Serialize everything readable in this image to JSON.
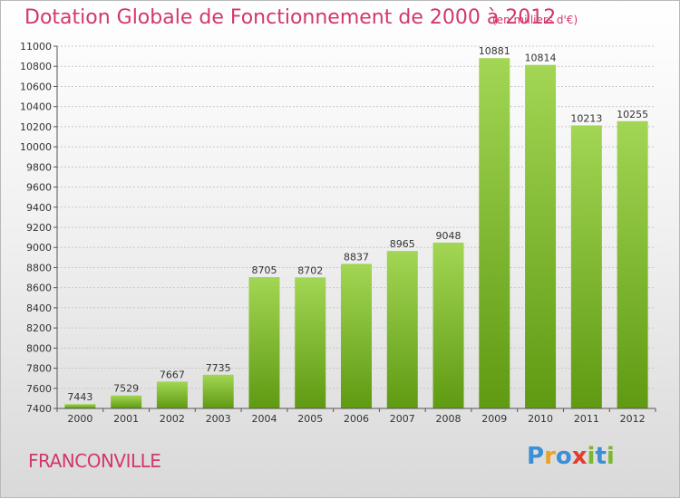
{
  "header": {
    "title": "Dotation Globale de Fonctionnement de 2000 à 2012",
    "unit": "(en milliers d'€)"
  },
  "footer": {
    "place": "FRANCONVILLE",
    "logo": "Proxiti",
    "logo_letters": [
      "P",
      "r",
      "o",
      "x",
      "i",
      "t",
      "i"
    ],
    "logo_colors": [
      "#3a8fd6",
      "#e8a323",
      "#3a8fd6",
      "#e63b2e",
      "#7cb82f",
      "#3a8fd6",
      "#7cb82f"
    ]
  },
  "colors": {
    "title": "#d2386b",
    "bar_top": "#a2d654",
    "bar_bottom": "#5f9a12",
    "grid": "#c8c8c8",
    "axis": "#555555"
  },
  "chart_data": {
    "type": "bar",
    "categories": [
      "2000",
      "2001",
      "2002",
      "2003",
      "2004",
      "2005",
      "2006",
      "2007",
      "2008",
      "2009",
      "2010",
      "2011",
      "2012"
    ],
    "values": [
      7443,
      7529,
      7667,
      7735,
      8705,
      8702,
      8837,
      8965,
      9048,
      10881,
      10814,
      10213,
      10255
    ],
    "value_labels": [
      "7443",
      "7529",
      "7667",
      "7735",
      "8705",
      "8702",
      "8837",
      "8965",
      "9048",
      "10881",
      "10814",
      "10213",
      "10255"
    ],
    "ylim": [
      7400,
      11000
    ],
    "yticks": [
      7400,
      7600,
      7800,
      8000,
      8200,
      8400,
      8600,
      8800,
      9000,
      9200,
      9400,
      9600,
      9800,
      10000,
      10200,
      10400,
      10600,
      10800,
      11000
    ],
    "ytick_labels": [
      "7400",
      "7600",
      "7800",
      "8000",
      "8200",
      "8400",
      "8600",
      "8800",
      "9000",
      "9200",
      "9400",
      "9600",
      "9800",
      "10000",
      "10200",
      "10400",
      "10600",
      "10800",
      "11000"
    ],
    "grid": true,
    "title": "Dotation Globale de Fonctionnement de 2000 à 2012",
    "xlabel": "",
    "ylabel": ""
  }
}
